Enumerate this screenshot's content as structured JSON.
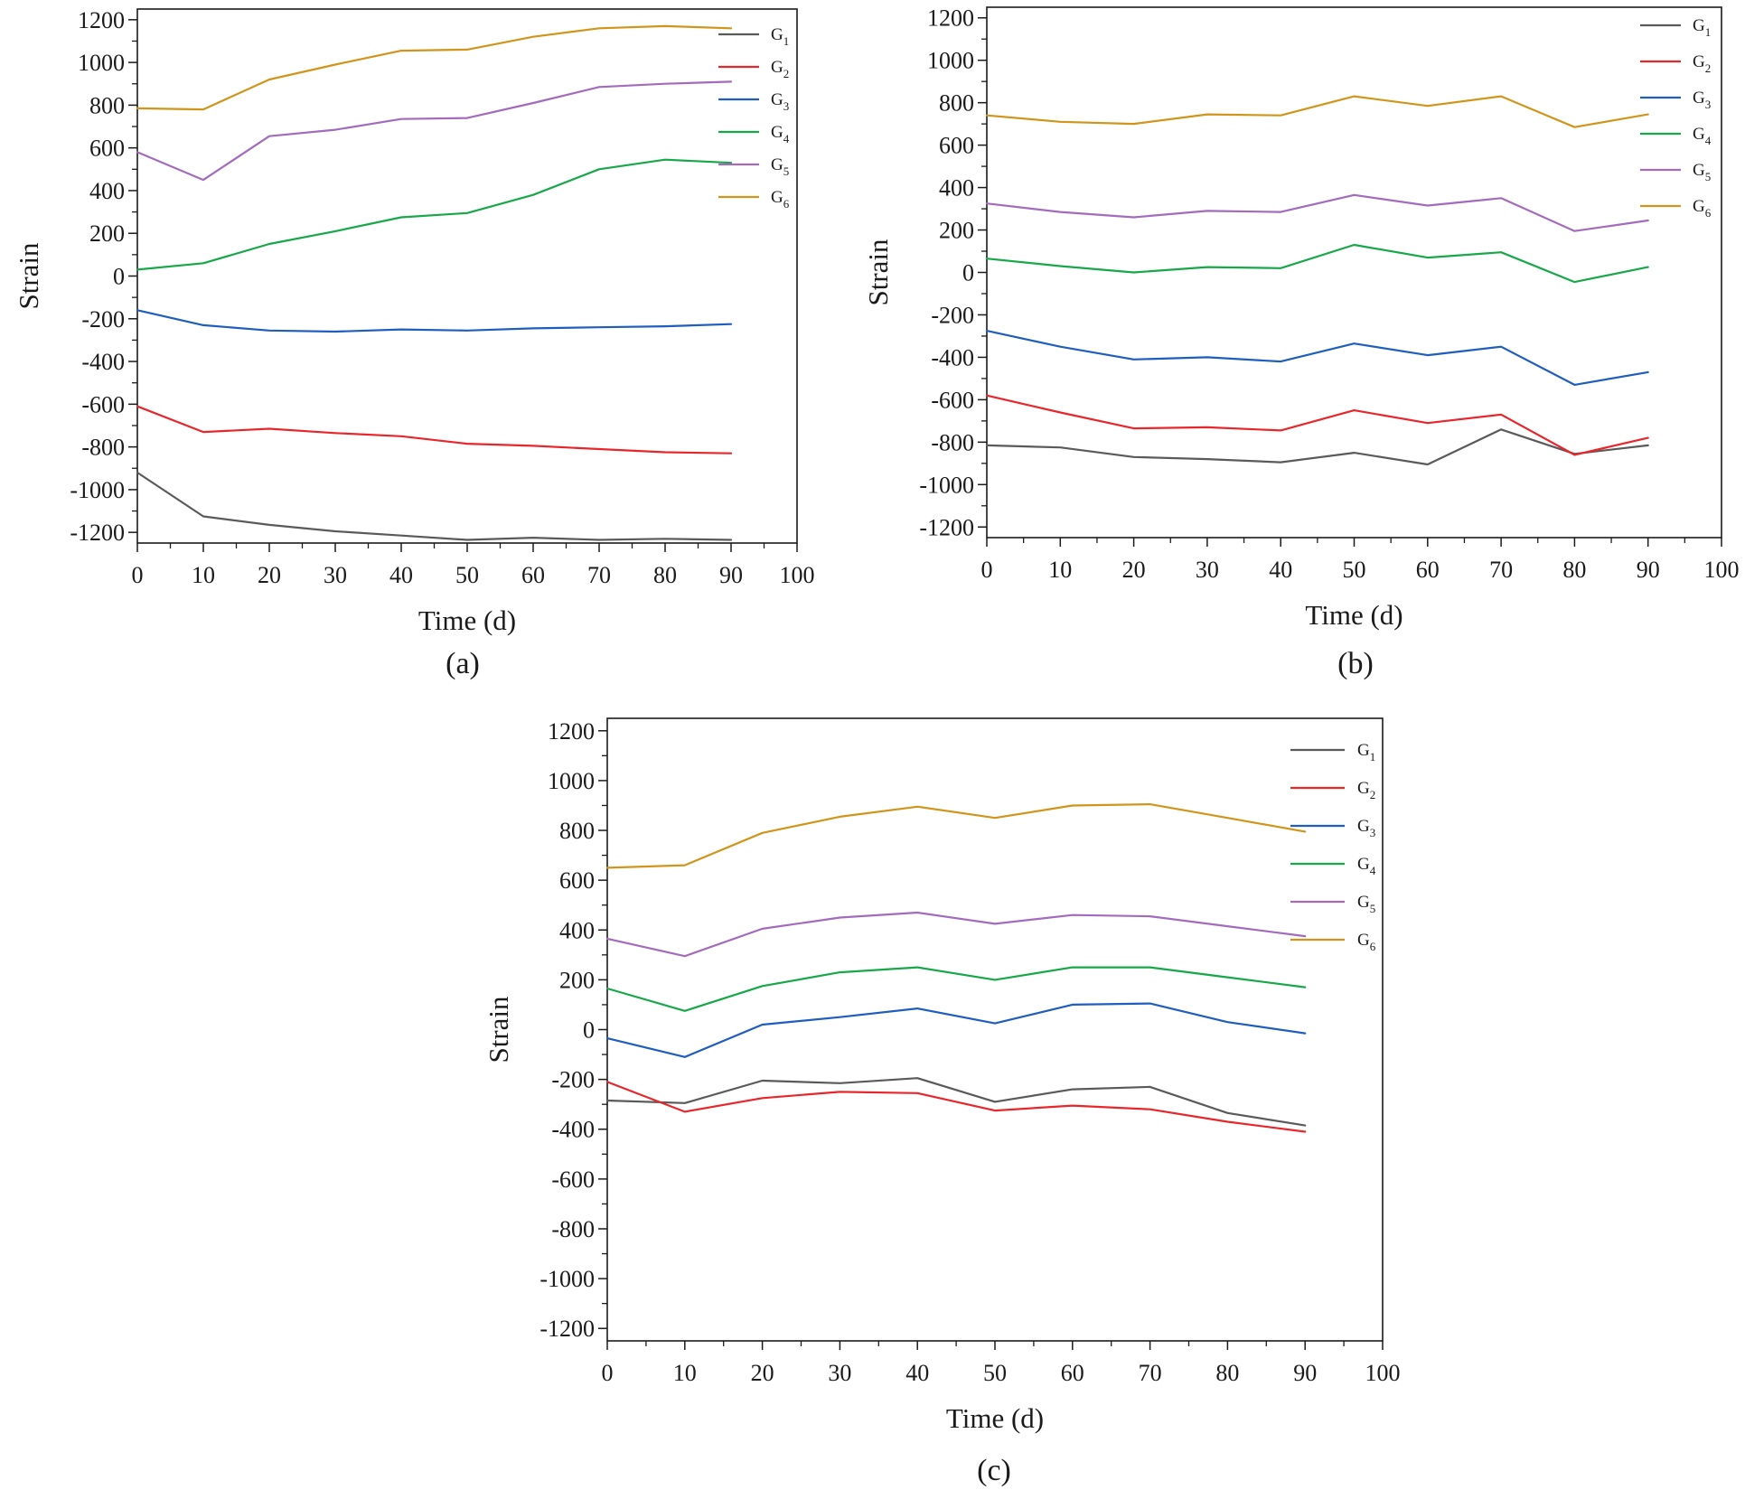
{
  "figure": {
    "panels": [
      {
        "caption": "(a)",
        "chart_data": {
          "type": "line",
          "xlabel": "Time (d)",
          "ylabel": "Strain",
          "xlim": [
            0,
            100
          ],
          "ylim": [
            -1250,
            1250
          ],
          "xticks": [
            0,
            10,
            20,
            30,
            40,
            50,
            60,
            70,
            80,
            90,
            100
          ],
          "yticks": [
            -1200,
            -1000,
            -800,
            -600,
            -400,
            -200,
            0,
            200,
            400,
            600,
            800,
            1000,
            1200
          ],
          "legend_position": "top-right",
          "x": [
            0,
            10,
            20,
            30,
            40,
            50,
            60,
            70,
            80,
            90
          ],
          "series": [
            {
              "name": "G",
              "sub": "1",
              "color": "#5a5a5a",
              "values": [
                -920,
                -1125,
                -1165,
                -1195,
                -1215,
                -1235,
                -1225,
                -1235,
                -1230,
                -1235
              ]
            },
            {
              "name": "G",
              "sub": "2",
              "color": "#e8262b",
              "values": [
                -610,
                -730,
                -715,
                -735,
                -750,
                -785,
                -795,
                -810,
                -825,
                -830
              ]
            },
            {
              "name": "G",
              "sub": "3",
              "color": "#1f5dbf",
              "values": [
                -160,
                -230,
                -255,
                -260,
                -250,
                -255,
                -245,
                -240,
                -235,
                -225
              ]
            },
            {
              "name": "G",
              "sub": "4",
              "color": "#17a84a",
              "values": [
                30,
                60,
                150,
                210,
                275,
                295,
                380,
                500,
                545,
                530
              ]
            },
            {
              "name": "G",
              "sub": "5",
              "color": "#a36bbd",
              "values": [
                580,
                450,
                655,
                685,
                735,
                740,
                810,
                885,
                900,
                910
              ]
            },
            {
              "name": "G",
              "sub": "6",
              "color": "#d0951a",
              "values": [
                785,
                780,
                920,
                990,
                1055,
                1060,
                1120,
                1160,
                1170,
                1160
              ]
            }
          ]
        }
      },
      {
        "caption": "(b)",
        "chart_data": {
          "type": "line",
          "xlabel": "Time (d)",
          "ylabel": "Strain",
          "xlim": [
            0,
            100
          ],
          "ylim": [
            -1250,
            1250
          ],
          "xticks": [
            0,
            10,
            20,
            30,
            40,
            50,
            60,
            70,
            80,
            90,
            100
          ],
          "yticks": [
            -1200,
            -1000,
            -800,
            -600,
            -400,
            -200,
            0,
            200,
            400,
            600,
            800,
            1000,
            1200
          ],
          "legend_position": "top-right",
          "x": [
            0,
            10,
            20,
            30,
            40,
            50,
            60,
            70,
            80,
            90
          ],
          "series": [
            {
              "name": "G",
              "sub": "1",
              "color": "#5a5a5a",
              "values": [
                -815,
                -825,
                -870,
                -880,
                -895,
                -850,
                -905,
                -740,
                -855,
                -815
              ]
            },
            {
              "name": "G",
              "sub": "2",
              "color": "#e8262b",
              "values": [
                -580,
                -660,
                -735,
                -730,
                -745,
                -650,
                -710,
                -670,
                -860,
                -780
              ]
            },
            {
              "name": "G",
              "sub": "3",
              "color": "#1f5dbf",
              "values": [
                -275,
                -350,
                -410,
                -400,
                -420,
                -335,
                -390,
                -350,
                -530,
                -470
              ]
            },
            {
              "name": "G",
              "sub": "4",
              "color": "#17a84a",
              "values": [
                65,
                30,
                0,
                25,
                20,
                130,
                70,
                95,
                -45,
                25
              ]
            },
            {
              "name": "G",
              "sub": "5",
              "color": "#a36bbd",
              "values": [
                325,
                285,
                260,
                290,
                285,
                365,
                315,
                350,
                195,
                245
              ]
            },
            {
              "name": "G",
              "sub": "6",
              "color": "#d0951a",
              "values": [
                740,
                710,
                700,
                745,
                740,
                830,
                785,
                830,
                685,
                745
              ]
            }
          ]
        }
      },
      {
        "caption": "(c)",
        "chart_data": {
          "type": "line",
          "xlabel": "Time (d)",
          "ylabel": "Strain",
          "xlim": [
            0,
            100
          ],
          "ylim": [
            -1250,
            1250
          ],
          "xticks": [
            0,
            10,
            20,
            30,
            40,
            50,
            60,
            70,
            80,
            90,
            100
          ],
          "yticks": [
            -1200,
            -1000,
            -800,
            -600,
            -400,
            -200,
            0,
            200,
            400,
            600,
            800,
            1000,
            1200
          ],
          "legend_position": "top-right",
          "x": [
            0,
            10,
            20,
            30,
            40,
            50,
            60,
            70,
            80,
            90
          ],
          "series": [
            {
              "name": "G",
              "sub": "1",
              "color": "#5a5a5a",
              "values": [
                -285,
                -295,
                -205,
                -215,
                -195,
                -290,
                -240,
                -230,
                -335,
                -385
              ]
            },
            {
              "name": "G",
              "sub": "2",
              "color": "#e8262b",
              "values": [
                -210,
                -330,
                -275,
                -250,
                -255,
                -325,
                -305,
                -320,
                -370,
                -410
              ]
            },
            {
              "name": "G",
              "sub": "3",
              "color": "#1f5dbf",
              "values": [
                -35,
                -110,
                20,
                50,
                85,
                25,
                100,
                105,
                30,
                -15
              ]
            },
            {
              "name": "G",
              "sub": "4",
              "color": "#17a84a",
              "values": [
                165,
                75,
                175,
                230,
                250,
                200,
                250,
                250,
                210,
                170
              ]
            },
            {
              "name": "G",
              "sub": "5",
              "color": "#a36bbd",
              "values": [
                365,
                295,
                405,
                450,
                470,
                425,
                460,
                455,
                415,
                375
              ]
            },
            {
              "name": "G",
              "sub": "6",
              "color": "#d0951a",
              "values": [
                650,
                660,
                790,
                855,
                895,
                850,
                900,
                905,
                850,
                795
              ]
            }
          ]
        }
      }
    ]
  }
}
